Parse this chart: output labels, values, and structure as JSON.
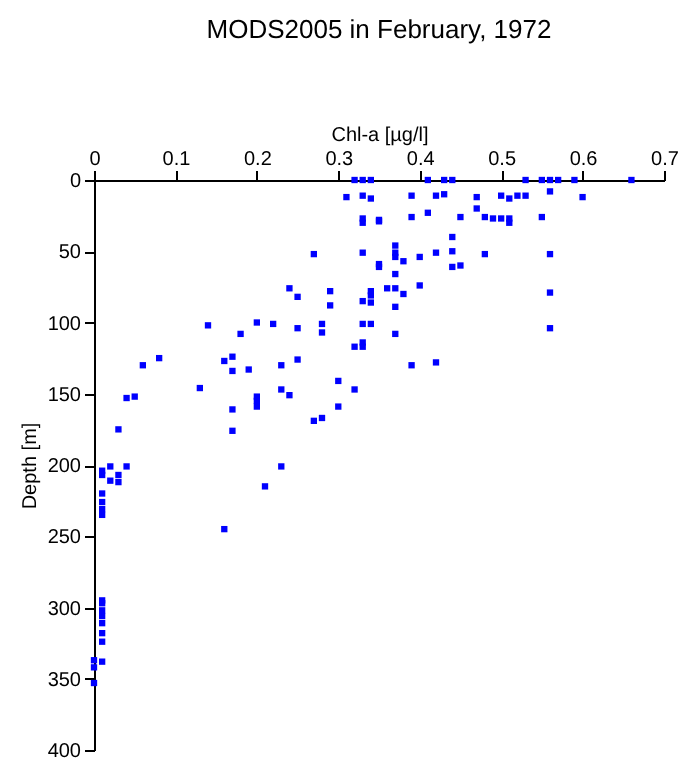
{
  "chart_data": {
    "type": "scatter",
    "title": "MODS2005 in February, 1972",
    "xlabel": "Chl-a [µg/l]",
    "ylabel": "Depth [m]",
    "xlim": [
      0,
      0.7
    ],
    "xticks": [
      0,
      0.1,
      0.2,
      0.3,
      0.4,
      0.5,
      0.6,
      0.7
    ],
    "ylim": [
      400,
      0
    ],
    "yticks": [
      0,
      50,
      100,
      150,
      200,
      250,
      300,
      350,
      400
    ],
    "marker": "square",
    "grid": false,
    "series": [
      {
        "color": "#0000ff",
        "x": [
          0.32,
          0.33,
          0.34,
          0.41,
          0.43,
          0.44,
          0.53,
          0.55,
          0.56,
          0.57,
          0.59,
          0.66,
          0.31,
          0.33,
          0.34,
          0.39,
          0.42,
          0.43,
          0.47,
          0.5,
          0.51,
          0.52,
          0.53,
          0.56,
          0.6,
          0.33,
          0.33,
          0.35,
          0.35,
          0.39,
          0.41,
          0.45,
          0.47,
          0.48,
          0.49,
          0.5,
          0.51,
          0.51,
          0.55,
          0.27,
          0.33,
          0.35,
          0.37,
          0.37,
          0.37,
          0.35,
          0.38,
          0.4,
          0.42,
          0.44,
          0.44,
          0.44,
          0.45,
          0.48,
          0.56,
          0.24,
          0.25,
          0.29,
          0.29,
          0.33,
          0.34,
          0.34,
          0.36,
          0.37,
          0.37,
          0.38,
          0.4,
          0.37,
          0.34,
          0.56,
          0.14,
          0.18,
          0.2,
          0.22,
          0.25,
          0.28,
          0.28,
          0.33,
          0.34,
          0.33,
          0.33,
          0.32,
          0.37,
          0.56,
          0.06,
          0.08,
          0.16,
          0.17,
          0.17,
          0.19,
          0.23,
          0.25,
          0.3,
          0.13,
          0.23,
          0.24,
          0.2,
          0.04,
          0.05,
          0.39,
          0.42,
          0.2,
          0.2,
          0.17,
          0.17,
          0.27,
          0.28,
          0.3,
          0.32,
          0.03,
          0.04,
          0.01,
          0.01,
          0.02,
          0.02,
          0.03,
          0.03,
          0.01,
          0.01,
          0.01,
          0.01,
          0.21,
          0.23,
          0.16,
          0.01,
          0.01,
          0.01,
          0.01,
          0.01,
          0.01,
          0.01,
          0.01,
          0.0,
          0.0,
          0.0
        ],
        "values": [
          0,
          0,
          0,
          0,
          0,
          0,
          0,
          0,
          0,
          0,
          0,
          0,
          12,
          11,
          13,
          11,
          11,
          10,
          12,
          11,
          13,
          11,
          11,
          8,
          12,
          27,
          30,
          28,
          29,
          26,
          23,
          26,
          20,
          26,
          27,
          27,
          27,
          30,
          26,
          52,
          51,
          59,
          46,
          51,
          54,
          61,
          57,
          54,
          51,
          40,
          50,
          61,
          60,
          52,
          52,
          76,
          82,
          78,
          88,
          85,
          78,
          81,
          76,
          76,
          66,
          80,
          74,
          89,
          86,
          79,
          102,
          108,
          100,
          101,
          104,
          101,
          107,
          114,
          101,
          101,
          117,
          117,
          108,
          104,
          130,
          125,
          127,
          124,
          134,
          133,
          130,
          126,
          141,
          146,
          147,
          151,
          152,
          153,
          152,
          130,
          128,
          155,
          159,
          161,
          176,
          169,
          167,
          159,
          147,
          175,
          201,
          204,
          207,
          201,
          211,
          207,
          212,
          220,
          226,
          231,
          235,
          215,
          201,
          245,
          295,
          297,
          302,
          306,
          311,
          318,
          324,
          338,
          337,
          342,
          353
        ]
      }
    ]
  }
}
